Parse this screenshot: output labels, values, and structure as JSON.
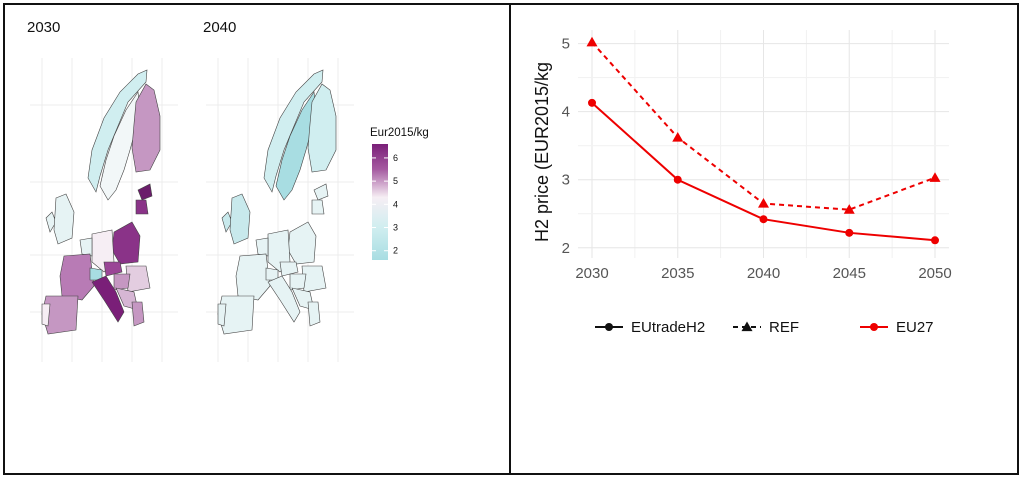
{
  "maps": {
    "panels": [
      {
        "title": "2030",
        "level": "varied"
      },
      {
        "title": "2040",
        "level": "low"
      }
    ],
    "legend": {
      "title": "Eur2015/kg",
      "ticks": [
        "6",
        "5",
        "4",
        "3",
        "2"
      ],
      "tick_values": [
        6,
        5,
        4,
        3,
        2
      ],
      "range": [
        1.6,
        6.6
      ],
      "colors": {
        "high": "#7a1f78",
        "mid": "#f6eef4",
        "low": "#a8dde2"
      }
    }
  },
  "chart_data": {
    "type": "line",
    "x": [
      2030,
      2035,
      2040,
      2045,
      2050
    ],
    "ylabel": "H2 price (EUR2015/kg",
    "xlabel": "",
    "ylim": [
      1.85,
      5.2
    ],
    "yticks": [
      2,
      3,
      4,
      5
    ],
    "xtick_labels": [
      "2030",
      "2035",
      "2040",
      "2045",
      "2050"
    ],
    "ytick_labels": [
      "2",
      "3",
      "4",
      "5"
    ],
    "grid": true,
    "series": [
      {
        "name": "EUtradeH2",
        "values": [
          4.13,
          3.0,
          2.42,
          2.22,
          2.11
        ],
        "style": "solid",
        "marker": "circle",
        "color": "#ee0000"
      },
      {
        "name": "REF",
        "values": [
          5.02,
          3.62,
          2.65,
          2.56,
          3.03
        ],
        "style": "dashed",
        "marker": "triangle",
        "color": "#ee0000"
      }
    ],
    "legend": {
      "placement": "bottom",
      "items": [
        {
          "label": "EUtradeH2",
          "style": "solid",
          "marker": "circle",
          "color": "#111111"
        },
        {
          "label": "REF",
          "style": "dashed",
          "marker": "triangle",
          "color": "#111111"
        },
        {
          "label": "EU27",
          "style": "solid",
          "marker": "circle",
          "color": "#ee0000"
        }
      ]
    }
  }
}
